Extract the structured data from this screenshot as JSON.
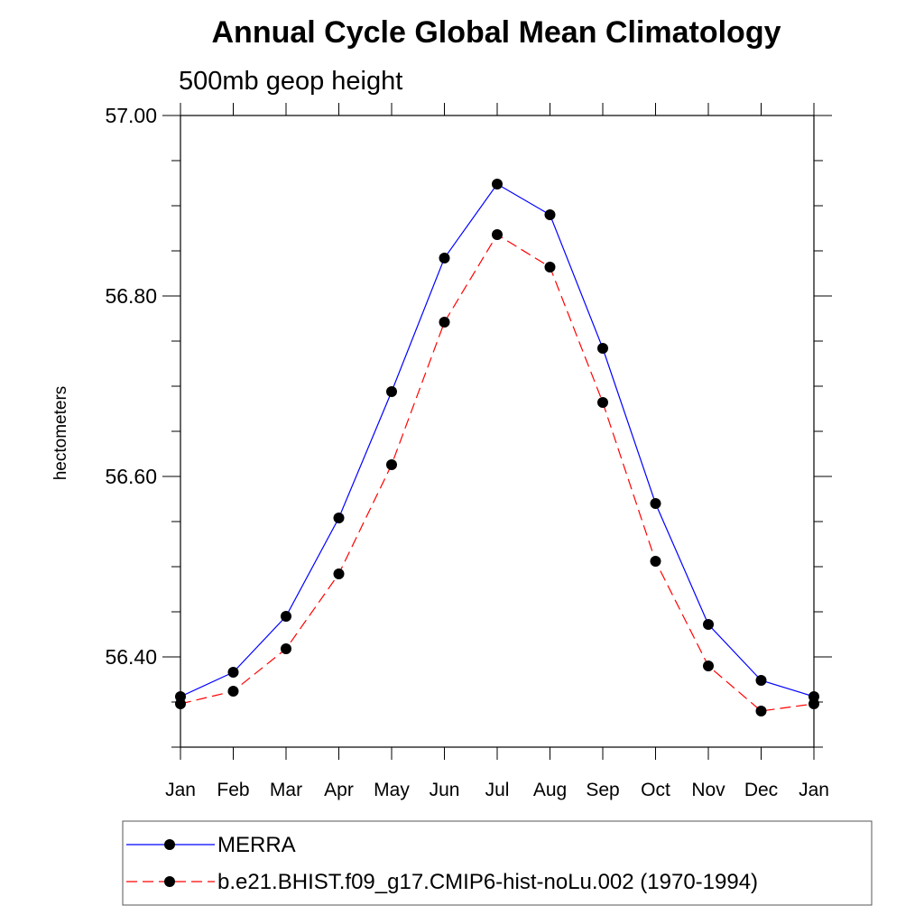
{
  "chart_data": {
    "type": "line",
    "title": "Annual Cycle Global Mean Climatology",
    "subtitle": "500mb geop height",
    "xlabel": "",
    "ylabel": "hectometers",
    "categories": [
      "Jan",
      "Feb",
      "Mar",
      "Apr",
      "May",
      "Jun",
      "Jul",
      "Aug",
      "Sep",
      "Oct",
      "Nov",
      "Dec",
      "Jan"
    ],
    "y_ticks": [
      "56.40",
      "56.60",
      "56.80",
      "57.00"
    ],
    "ylim": [
      56.3,
      57.0
    ],
    "grid": false,
    "legend_position": "bottom",
    "series": [
      {
        "name": "MERRA",
        "color": "#0000ff",
        "line_style": "solid",
        "marker": "filled-circle",
        "values": [
          56.356,
          56.383,
          56.445,
          56.554,
          56.694,
          56.842,
          56.924,
          56.89,
          56.742,
          56.57,
          56.436,
          56.374,
          56.356
        ]
      },
      {
        "name": "b.e21.BHIST.f09_g17.CMIP6-hist-noLu.002 (1970-1994)",
        "color": "#ff0000",
        "line_style": "dashed",
        "marker": "filled-circle",
        "values": [
          56.348,
          56.362,
          56.409,
          56.492,
          56.613,
          56.771,
          56.868,
          56.832,
          56.682,
          56.506,
          56.39,
          56.34,
          56.348
        ]
      }
    ]
  }
}
